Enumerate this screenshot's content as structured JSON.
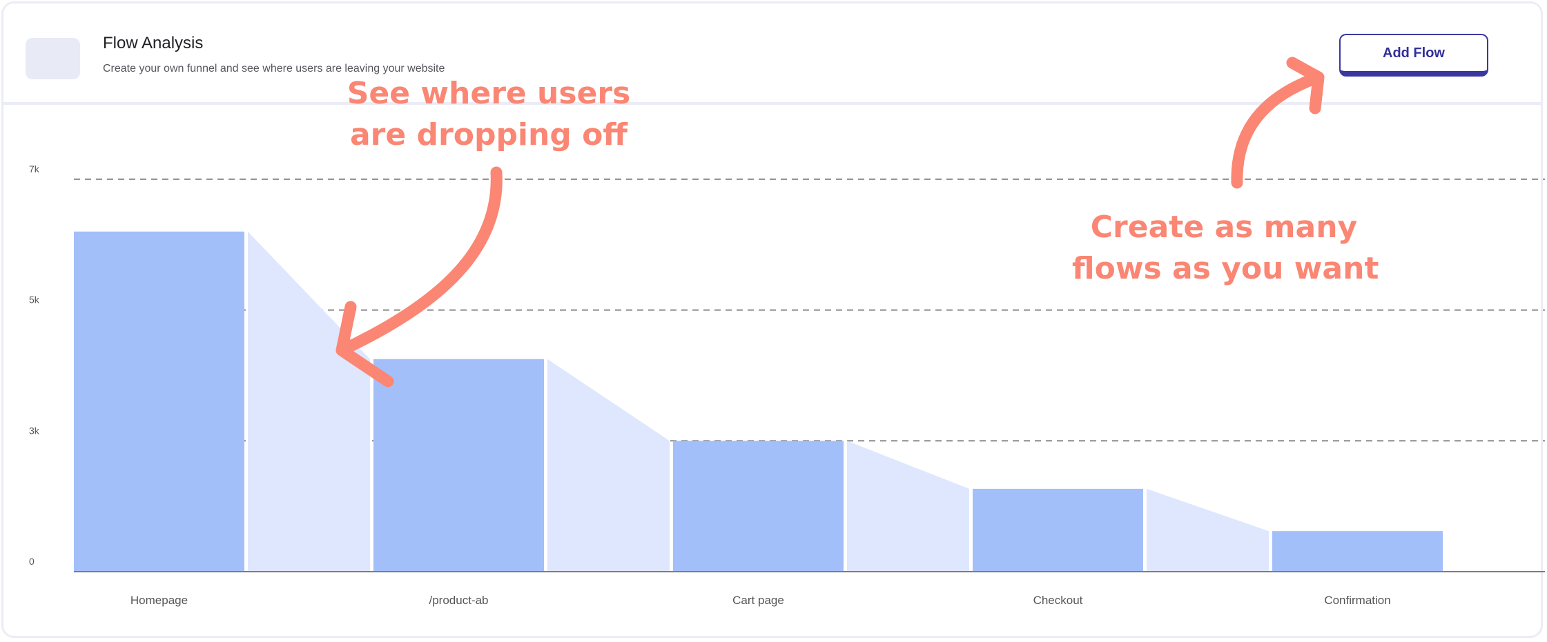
{
  "header": {
    "title": "Flow Analysis",
    "subtitle": "Create your own funnel and see where users are leaving your website",
    "add_button_label": "Add Flow"
  },
  "annotations": {
    "left_line1": "See where users",
    "left_line2": "are dropping off",
    "right_line1": "Create as many",
    "right_line2": "flows as you want"
  },
  "colors": {
    "bar": "#a3bffa",
    "connector": "#dee7fd",
    "annotation": "#fa8673",
    "button": "#3a37a0"
  },
  "chart_data": {
    "type": "bar",
    "subtype": "funnel",
    "categories": [
      "Homepage",
      "/product-ab",
      "Cart page",
      "Checkout",
      "Confirmation"
    ],
    "values": [
      6200,
      4250,
      3000,
      1900,
      930
    ],
    "y_ticks": [
      0,
      3000,
      5000,
      7000
    ],
    "y_tick_labels": [
      "0",
      "3k",
      "5k",
      "7k"
    ],
    "ylim": [
      0,
      7000
    ],
    "grid": "dashed horizontal",
    "legend": "none"
  }
}
